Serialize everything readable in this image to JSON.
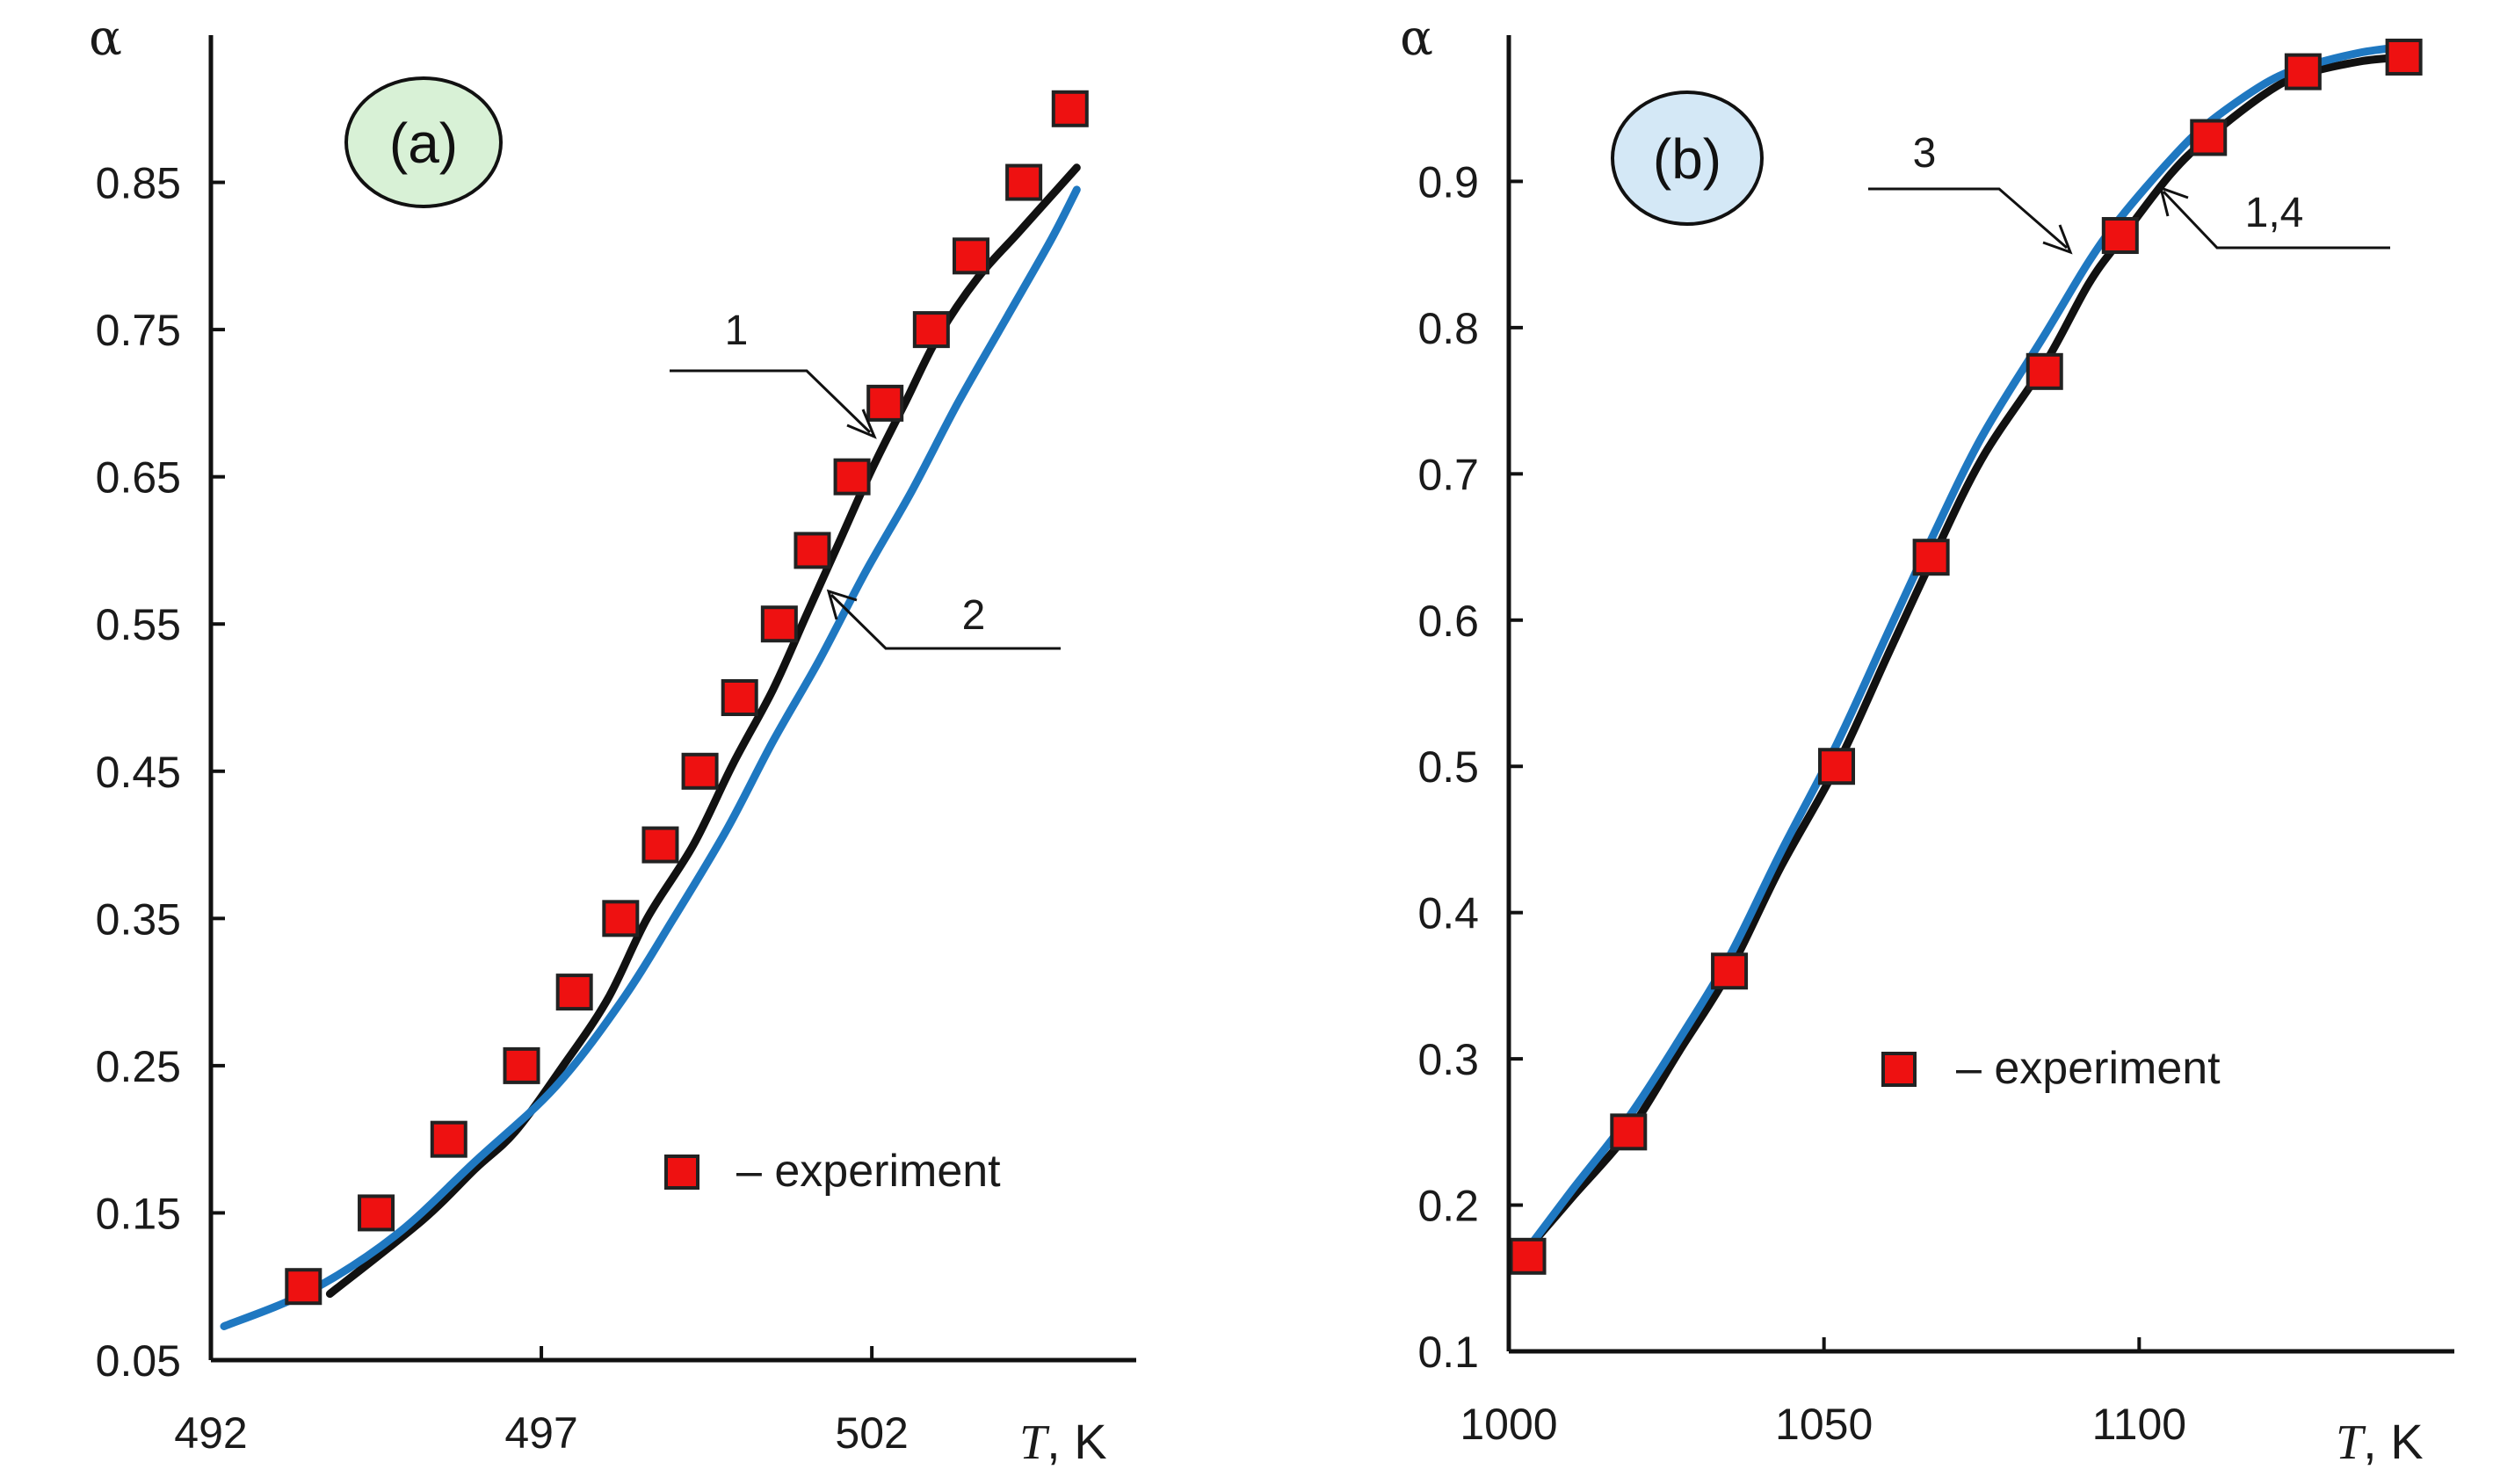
{
  "chart_data": [
    {
      "type": "line",
      "panel_label": "(a)",
      "badge_color": "#d8f1d6",
      "y_title": "α",
      "x_title_italic": "T",
      "x_title_unit": ", K",
      "xlim": [
        492,
        506
      ],
      "ylim": [
        0.05,
        0.95
      ],
      "x_ticks": [
        492,
        497,
        502
      ],
      "y_ticks": [
        0.05,
        0.15,
        0.25,
        0.35,
        0.45,
        0.55,
        0.65,
        0.75,
        0.85
      ],
      "y_tick_labels": [
        "0.05",
        "0.15",
        "0.25",
        "0.35",
        "0.45",
        "0.55",
        "0.65",
        "0.75",
        "0.85"
      ],
      "series": [
        {
          "name": "1",
          "color": "#111111",
          "x": [
            493.8,
            495.2,
            496.0,
            496.6,
            497.3,
            498.0,
            498.6,
            499.3,
            499.9,
            500.5,
            501.0,
            501.5,
            502.0,
            502.5,
            503.0,
            503.6,
            504.2,
            504.7,
            505.1
          ],
          "y": [
            0.095,
            0.145,
            0.18,
            0.205,
            0.248,
            0.295,
            0.35,
            0.4,
            0.455,
            0.505,
            0.555,
            0.605,
            0.655,
            0.7,
            0.745,
            0.785,
            0.815,
            0.84,
            0.86
          ]
        },
        {
          "name": "2",
          "color": "#1f78c1",
          "x": [
            492.2,
            493.5,
            494.8,
            496.0,
            497.2,
            498.2,
            499.0,
            499.8,
            500.5,
            501.2,
            501.9,
            502.6,
            503.3,
            504.0,
            504.7,
            505.1
          ],
          "y": [
            0.073,
            0.097,
            0.135,
            0.185,
            0.235,
            0.293,
            0.35,
            0.41,
            0.47,
            0.525,
            0.585,
            0.64,
            0.7,
            0.755,
            0.81,
            0.845
          ]
        }
      ],
      "experiment": {
        "x": [
          493.4,
          494.5,
          495.6,
          496.7,
          497.5,
          498.2,
          498.8,
          499.4,
          500.0,
          500.6,
          501.1,
          501.7,
          502.2,
          502.9,
          503.5,
          504.3,
          505.0
        ],
        "y": [
          0.1,
          0.15,
          0.2,
          0.25,
          0.3,
          0.35,
          0.4,
          0.45,
          0.5,
          0.55,
          0.6,
          0.65,
          0.7,
          0.75,
          0.8,
          0.85,
          0.9
        ]
      },
      "legend": "– experiment",
      "annotations": [
        {
          "text": "1"
        },
        {
          "text": "2"
        }
      ]
    },
    {
      "type": "line",
      "panel_label": "(b)",
      "badge_color": "#d4e8f6",
      "y_title": "α",
      "x_title_italic": "T",
      "x_title_unit": ", K",
      "xlim": [
        1000,
        1150
      ],
      "ylim": [
        0.1,
        1.0
      ],
      "x_ticks": [
        1000,
        1050,
        1100
      ],
      "y_ticks": [
        0.1,
        0.2,
        0.3,
        0.4,
        0.5,
        0.6,
        0.7,
        0.8,
        0.9
      ],
      "y_tick_labels": [
        "0.1",
        "0.2",
        "0.3",
        "0.4",
        "0.5",
        "0.6",
        "0.7",
        "0.8",
        "0.9"
      ],
      "series": [
        {
          "name": "1,4",
          "color": "#111111",
          "x": [
            1003,
            1010,
            1019,
            1027,
            1035,
            1043,
            1052,
            1060,
            1067,
            1075,
            1085,
            1092,
            1097,
            1105,
            1111,
            1120,
            1126,
            1135,
            1142
          ],
          "y": [
            0.17,
            0.205,
            0.25,
            0.305,
            0.36,
            0.43,
            0.5,
            0.575,
            0.64,
            0.71,
            0.775,
            0.83,
            0.86,
            0.905,
            0.93,
            0.96,
            0.973,
            0.982,
            0.985
          ]
        },
        {
          "name": "3",
          "color": "#1f78c1",
          "x": [
            1003,
            1010,
            1019,
            1027,
            1035,
            1043,
            1052,
            1060,
            1067,
            1075,
            1085,
            1092,
            1097,
            1105,
            1111,
            1120,
            1126,
            1135,
            1142
          ],
          "y": [
            0.17,
            0.21,
            0.26,
            0.313,
            0.37,
            0.44,
            0.515,
            0.59,
            0.655,
            0.725,
            0.795,
            0.845,
            0.875,
            0.915,
            0.94,
            0.967,
            0.978,
            0.988,
            0.992
          ]
        }
      ],
      "experiment": {
        "x": [
          1003,
          1019,
          1035,
          1052,
          1067,
          1085,
          1097,
          1111,
          1126,
          1142
        ],
        "y": [
          0.165,
          0.25,
          0.36,
          0.5,
          0.643,
          0.77,
          0.863,
          0.93,
          0.975,
          0.985
        ]
      },
      "legend": "– experiment",
      "annotations": [
        {
          "text": "3"
        },
        {
          "text": "1,4"
        }
      ]
    }
  ]
}
